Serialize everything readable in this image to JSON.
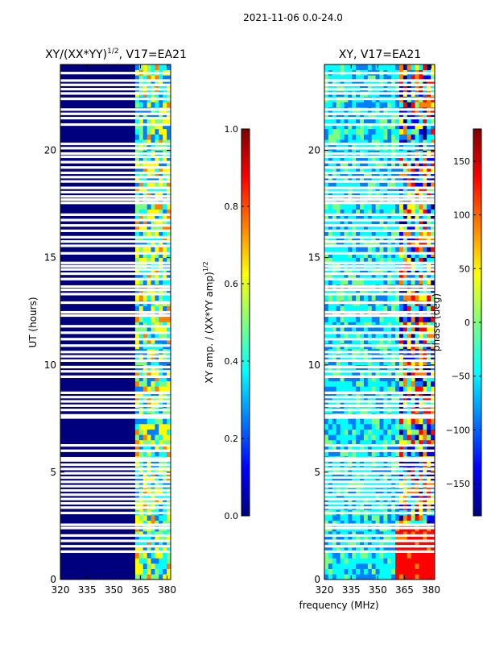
{
  "suptitle": "2021-11-06 0.0-24.0",
  "colors": {
    "bg_dark": "#00007f",
    "gap": "#ffffff",
    "jet": [
      "#00007f",
      "#0000ff",
      "#007fff",
      "#00ffff",
      "#7fff7f",
      "#ffff00",
      "#ff7f00",
      "#ff0000",
      "#7f0000"
    ]
  },
  "chart_data": [
    {
      "type": "heatmap",
      "title_text": "XY/(XX*YY)",
      "title_sup": "1/2",
      "title_tail": ", V17=EA21",
      "xlabel": "",
      "ylabel": "UT (hours)",
      "xlim": [
        320,
        382
      ],
      "ylim": [
        0,
        24
      ],
      "xticks": [
        "320",
        "335",
        "350",
        "365",
        "380"
      ],
      "xtick_values": [
        320,
        335,
        350,
        365,
        380
      ],
      "yticks": [
        "0",
        "5",
        "10",
        "15",
        "20"
      ],
      "ytick_values": [
        0,
        5,
        10,
        15,
        20
      ],
      "colorbar": {
        "label_text": "XY amp. / (XX*YY amp)",
        "label_sup": "1/2",
        "range": [
          0.0,
          1.0
        ],
        "ticks": [
          "0.0",
          "0.2",
          "0.4",
          "0.6",
          "0.8",
          "1.0"
        ],
        "tick_values": [
          0.0,
          0.2,
          0.4,
          0.6,
          0.8,
          1.0
        ]
      },
      "band_edge_mhz": 362,
      "gap_hours": [
        1.3,
        1.55,
        1.8,
        2.05,
        2.4,
        2.55,
        3.1,
        3.35,
        3.55,
        3.75,
        3.95,
        4.15,
        4.35,
        4.55,
        4.75,
        4.95,
        5.15,
        5.35,
        5.55,
        5.65,
        6.0,
        6.25,
        7.55,
        7.65,
        7.9,
        8.1,
        8.3,
        8.5,
        8.7,
        9.45,
        9.7,
        9.9,
        10.2,
        10.4,
        10.6,
        10.9,
        11.2,
        11.5,
        11.8,
        12.3,
        12.45,
        12.9,
        13.3,
        13.5,
        13.65,
        14.0,
        14.25,
        14.45,
        14.6,
        14.75,
        15.2,
        15.55,
        15.75,
        15.95,
        16.25,
        16.5,
        16.75,
        17.0,
        17.55,
        17.7,
        17.85,
        18.05,
        18.25,
        18.55,
        18.75,
        18.95,
        19.2,
        19.45,
        19.7,
        19.85,
        20.1,
        20.3,
        21.2,
        21.5,
        21.7,
        21.9,
        22.4,
        22.65,
        22.85,
        23.05,
        23.25,
        23.6
      ]
    },
    {
      "type": "heatmap",
      "title": "XY, V17=EA21",
      "xlabel": "frequency (MHz)",
      "ylabel": "",
      "xlim": [
        320,
        382
      ],
      "ylim": [
        0,
        24
      ],
      "xticks": [
        "320",
        "335",
        "350",
        "365",
        "380"
      ],
      "xtick_values": [
        320,
        335,
        350,
        365,
        380
      ],
      "yticks": [
        "0",
        "5",
        "10",
        "15",
        "20"
      ],
      "ytick_values": [
        0,
        5,
        10,
        15,
        20
      ],
      "colorbar": {
        "label": "phase (deg)",
        "range": [
          -180,
          180
        ],
        "ticks": [
          "−150",
          "−100",
          "−50",
          "0",
          "50",
          "100",
          "150"
        ],
        "tick_values": [
          -150,
          -100,
          -50,
          0,
          50,
          100,
          150
        ]
      },
      "gap_hours": [
        1.3,
        1.55,
        1.8,
        2.05,
        2.4,
        2.55,
        3.1,
        3.35,
        3.55,
        3.75,
        3.95,
        4.15,
        4.35,
        4.55,
        4.75,
        4.95,
        5.15,
        5.35,
        5.55,
        5.65,
        6.0,
        6.25,
        7.55,
        7.65,
        7.9,
        8.1,
        8.3,
        8.5,
        8.7,
        9.45,
        9.7,
        9.9,
        10.2,
        10.4,
        10.6,
        10.9,
        11.2,
        11.5,
        11.8,
        12.3,
        12.45,
        12.9,
        13.3,
        13.5,
        13.65,
        14.0,
        14.25,
        14.45,
        14.6,
        14.75,
        15.2,
        15.55,
        15.75,
        15.95,
        16.25,
        16.5,
        16.75,
        17.0,
        17.55,
        17.7,
        17.85,
        18.05,
        18.25,
        18.55,
        18.75,
        18.95,
        19.2,
        19.45,
        19.7,
        19.85,
        20.1,
        20.3,
        21.2,
        21.5,
        21.7,
        21.9,
        22.4,
        22.65,
        22.85,
        23.05,
        23.25,
        23.6
      ]
    }
  ]
}
